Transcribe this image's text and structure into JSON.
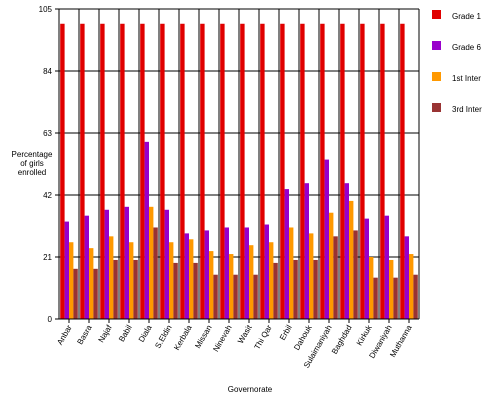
{
  "chart_data": {
    "type": "bar",
    "title": "",
    "xlabel": "Governorate",
    "ylabel_lines": [
      "Percentage",
      "of girls",
      "enrolled"
    ],
    "ylim": [
      0,
      105
    ],
    "yticks": [
      0,
      21,
      42,
      63,
      84,
      105
    ],
    "grid": true,
    "legend_position": "right",
    "categories": [
      "Anbar",
      "Basra",
      "Najaf",
      "Babil",
      "Diala",
      "S.Eldin",
      "Kerbala",
      "Missan",
      "Ninevah",
      "Wasit",
      "Thi Qar",
      "Erbil",
      "Dahouk",
      "Sulaimaniyah",
      "Baghdad",
      "Kirkuk",
      "Diwaniyah",
      "Muthanna"
    ],
    "series": [
      {
        "name": "Grade 1",
        "color": "#e00000",
        "values": [
          100,
          100,
          100,
          100,
          100,
          100,
          100,
          100,
          100,
          100,
          100,
          100,
          100,
          100,
          100,
          100,
          100,
          100
        ]
      },
      {
        "name": "Grade 6",
        "color": "#9900cc",
        "values": [
          33,
          35,
          37,
          38,
          60,
          37,
          29,
          30,
          31,
          31,
          32,
          44,
          46,
          54,
          46,
          34,
          35,
          28
        ]
      },
      {
        "name": "1st Inter",
        "color": "#ff9900",
        "values": [
          26,
          24,
          28,
          26,
          38,
          26,
          27,
          23,
          22,
          25,
          26,
          31,
          29,
          36,
          40,
          21,
          20,
          22
        ]
      },
      {
        "name": "3rd Inter",
        "color": "#993333",
        "values": [
          17,
          17,
          20,
          20,
          31,
          19,
          19,
          15,
          15,
          15,
          19,
          20,
          20,
          28,
          30,
          14,
          14,
          15
        ]
      }
    ]
  }
}
